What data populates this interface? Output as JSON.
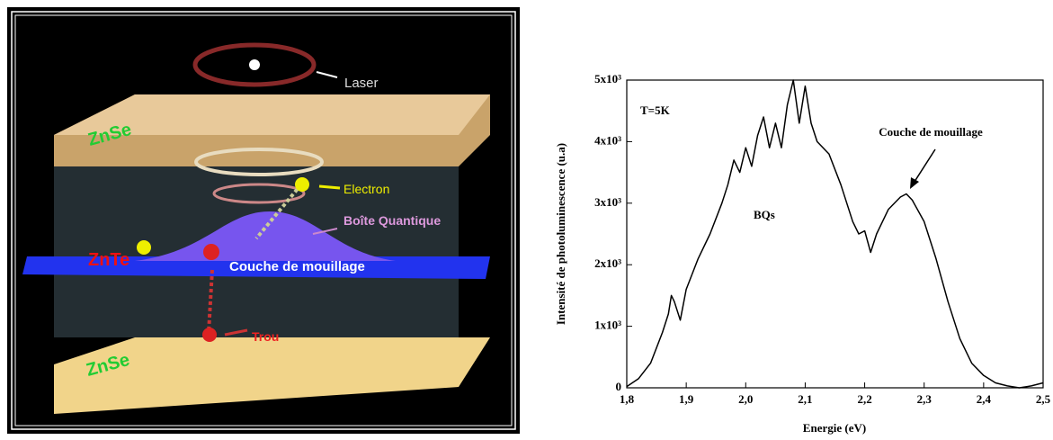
{
  "diagram": {
    "labels": {
      "laser": "Laser",
      "top_layer": "ZnSe",
      "electron": "Electron",
      "quantum_dot": "Boîte Quantique",
      "znte": "ZnTe",
      "wetting_layer": "Couche de mouillage",
      "hole": "Trou",
      "bottom_layer": "ZnSe"
    }
  },
  "chart_data": {
    "type": "line",
    "xlabel": "Energie (eV)",
    "ylabel": "Intensité de photoluminescence (u.a)",
    "annotations": [
      "T=5K",
      "BQs",
      "Couche de mouillage"
    ],
    "color": "#000000",
    "x": [
      1.8,
      1.82,
      1.84,
      1.86,
      1.87,
      1.875,
      1.88,
      1.89,
      1.9,
      1.92,
      1.94,
      1.96,
      1.97,
      1.98,
      1.99,
      2.0,
      2.01,
      2.02,
      2.03,
      2.04,
      2.05,
      2.06,
      2.07,
      2.08,
      2.09,
      2.1,
      2.11,
      2.12,
      2.14,
      2.16,
      2.18,
      2.19,
      2.2,
      2.21,
      2.22,
      2.24,
      2.26,
      2.27,
      2.28,
      2.3,
      2.32,
      2.34,
      2.36,
      2.38,
      2.4,
      2.42,
      2.44,
      2.46,
      2.48,
      2.5
    ],
    "values": [
      20,
      150,
      400,
      900,
      1200,
      1500,
      1400,
      1100,
      1600,
      2100,
      2500,
      3000,
      3300,
      3700,
      3500,
      3900,
      3600,
      4100,
      4400,
      3900,
      4300,
      3900,
      4600,
      5000,
      4300,
      4900,
      4300,
      4000,
      3800,
      3300,
      2700,
      2500,
      2550,
      2200,
      2500,
      2900,
      3100,
      3150,
      3050,
      2700,
      2100,
      1400,
      800,
      400,
      200,
      80,
      30,
      0,
      30,
      80
    ],
    "xlim": [
      1.8,
      2.5
    ],
    "xticks": [
      {
        "value": 1.8,
        "label": "1,8"
      },
      {
        "value": 1.9,
        "label": "1,9"
      },
      {
        "value": 2.0,
        "label": "2,0"
      },
      {
        "value": 2.1,
        "label": "2,1"
      },
      {
        "value": 2.2,
        "label": "2,2"
      },
      {
        "value": 2.3,
        "label": "2,3"
      },
      {
        "value": 2.4,
        "label": "2,4"
      },
      {
        "value": 2.5,
        "label": "2,5"
      }
    ],
    "ylim": [
      0,
      5000
    ],
    "yticks": [
      0,
      {
        "value": 1000,
        "label": "1x10³"
      },
      {
        "value": 2000,
        "label": "2x10³"
      },
      {
        "value": 3000,
        "label": "3x10³"
      },
      {
        "value": 4000,
        "label": "4x10³"
      },
      {
        "value": 5000,
        "label": "5x10³"
      }
    ]
  }
}
